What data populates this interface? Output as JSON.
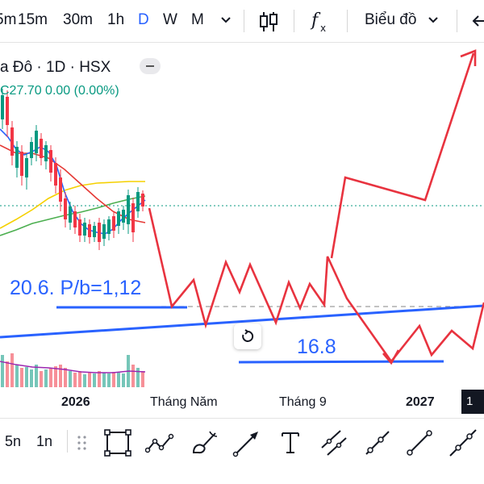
{
  "top_toolbar": {
    "timeframes": [
      {
        "label": "5m",
        "active": false
      },
      {
        "label": "15m",
        "active": false
      },
      {
        "label": "30m",
        "active": false
      },
      {
        "label": "1h",
        "active": false
      },
      {
        "label": "D",
        "active": true
      },
      {
        "label": "W",
        "active": false
      },
      {
        "label": "M",
        "active": false
      }
    ],
    "chart_type_label": "Biểu đồ",
    "icons": [
      "chevron-down-icon",
      "candlestick-icon",
      "indicators-fx-icon",
      "chevron-down-icon",
      "undo-icon"
    ]
  },
  "legend": {
    "symbol": "a Đô · 1D · HSX",
    "ohlc": "C27.70 0.00 (0.00%)",
    "up_color": "#089981"
  },
  "annotations": {
    "pb_label": "20.6. P/b=1,12",
    "target_label": "16.8",
    "annotation_color": "#2962ff",
    "projection_color": "#e8333f"
  },
  "time_axis": {
    "ticks": [
      {
        "label": "2026",
        "bold": true
      },
      {
        "label": "Tháng Năm",
        "bold": false
      },
      {
        "label": "Tháng 9",
        "bold": false
      },
      {
        "label": "2027",
        "bold": true
      }
    ],
    "badge": "1"
  },
  "bottom_toolbar": {
    "labels": [
      "5n",
      "1n"
    ],
    "tools": [
      "drag-handle-icon",
      "rectangle-tool-icon",
      "path-tool-icon",
      "brush-tool-icon",
      "arrow-tool-icon",
      "text-tool-icon",
      "parallel-channel-icon",
      "ray-tool-icon",
      "trend-line-icon",
      "extended-line-icon"
    ]
  }
}
